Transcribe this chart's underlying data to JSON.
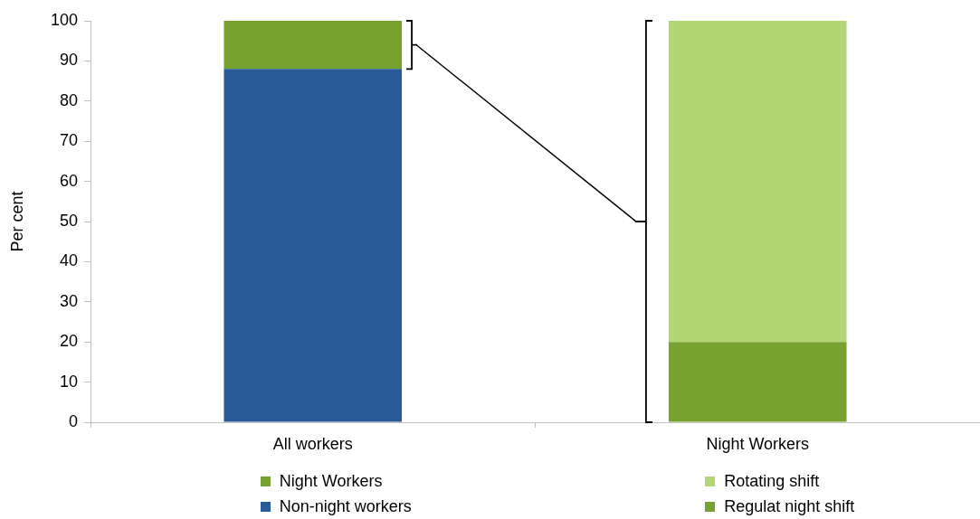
{
  "chart_data": {
    "type": "bar",
    "categories": [
      "All workers",
      "Night Workers"
    ],
    "ylabel": "Per cent",
    "ylim": [
      0,
      100
    ],
    "yticks": [
      0,
      10,
      20,
      30,
      40,
      50,
      60,
      70,
      80,
      90,
      100
    ],
    "stacked": true,
    "grid": false,
    "legend": "bottom",
    "series": [
      {
        "name": "Non-night workers",
        "color": "#295b99",
        "values": [
          88,
          null
        ]
      },
      {
        "name": "Night Workers",
        "color": "#78a22f",
        "values": [
          12,
          null
        ]
      },
      {
        "name": "Regulat night shift",
        "color": "#78a22f",
        "values": [
          null,
          20
        ]
      },
      {
        "name": "Rotating shift",
        "color": "#b3d675",
        "values": [
          null,
          80
        ]
      }
    ]
  }
}
